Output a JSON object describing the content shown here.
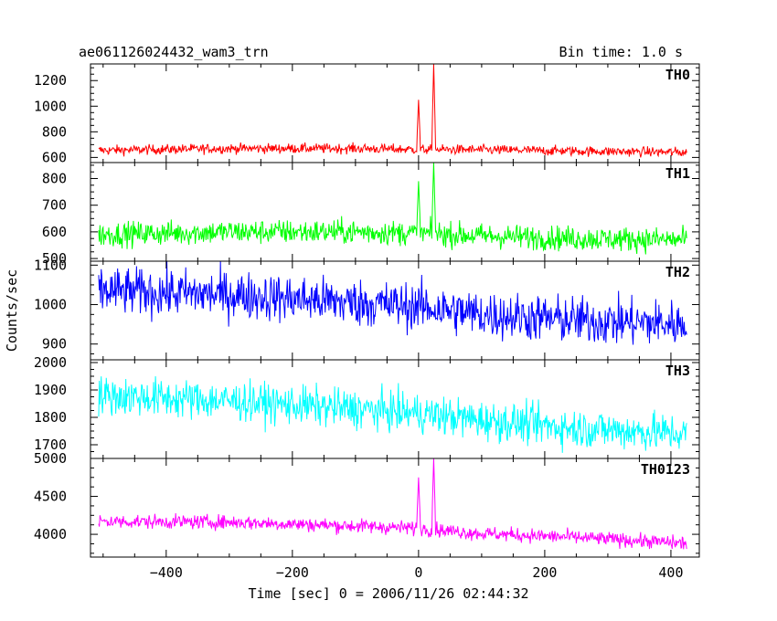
{
  "chart_data": {
    "type": "line",
    "title": "ae061126024432_wam3_trn",
    "bin_time_label": "Bin time: 1.0 s",
    "xlabel": "Time [sec] 0 = 2006/11/26 02:44:32",
    "ylabel": "Counts/sec",
    "xlim": [
      -520,
      445
    ],
    "x_ticks": [
      -400,
      -200,
      0,
      200,
      400
    ],
    "x_tick_labels": [
      "−400",
      "−200",
      "0",
      "200",
      "400"
    ],
    "x_range_data": [
      -507,
      425
    ],
    "bin_size_sec": 1.0,
    "panels": [
      {
        "name": "TH0",
        "color": "#ff0000",
        "ylim": [
          560,
          1330
        ],
        "y_ticks": [
          600,
          800,
          1000,
          1200
        ],
        "baseline": [
          {
            "x": -507,
            "y": 655
          },
          {
            "x": -300,
            "y": 670
          },
          {
            "x": -100,
            "y": 670
          },
          {
            "x": 0,
            "y": 662
          },
          {
            "x": 100,
            "y": 660
          },
          {
            "x": 250,
            "y": 650
          },
          {
            "x": 425,
            "y": 640
          }
        ],
        "noise_amplitude": 35,
        "spikes": [
          {
            "x": 0,
            "y": 1050
          },
          {
            "x": 24,
            "y": 1330
          }
        ]
      },
      {
        "name": "TH1",
        "color": "#00ff00",
        "ylim": [
          490,
          860
        ],
        "y_ticks": [
          500,
          600,
          700,
          800
        ],
        "baseline": [
          {
            "x": -507,
            "y": 590
          },
          {
            "x": -300,
            "y": 600
          },
          {
            "x": -100,
            "y": 600
          },
          {
            "x": 0,
            "y": 595
          },
          {
            "x": 100,
            "y": 585
          },
          {
            "x": 250,
            "y": 575
          },
          {
            "x": 425,
            "y": 570
          }
        ],
        "noise_amplitude": 42,
        "spikes": [
          {
            "x": 0,
            "y": 790
          },
          {
            "x": 24,
            "y": 860
          }
        ]
      },
      {
        "name": "TH2",
        "color": "#0000ff",
        "ylim": [
          860,
          1110
        ],
        "y_ticks": [
          900,
          1000,
          1100
        ],
        "baseline": [
          {
            "x": -507,
            "y": 1035
          },
          {
            "x": -300,
            "y": 1025
          },
          {
            "x": -100,
            "y": 1005
          },
          {
            "x": 0,
            "y": 995
          },
          {
            "x": 100,
            "y": 975
          },
          {
            "x": 250,
            "y": 960
          },
          {
            "x": 425,
            "y": 950
          }
        ],
        "noise_amplitude": 55,
        "spikes": []
      },
      {
        "name": "TH3",
        "color": "#00ffff",
        "ylim": [
          1650,
          2010
        ],
        "y_ticks": [
          1700,
          1800,
          1900,
          2000
        ],
        "baseline": [
          {
            "x": -507,
            "y": 1880
          },
          {
            "x": -300,
            "y": 1860
          },
          {
            "x": -100,
            "y": 1830
          },
          {
            "x": 0,
            "y": 1815
          },
          {
            "x": 100,
            "y": 1790
          },
          {
            "x": 250,
            "y": 1760
          },
          {
            "x": 425,
            "y": 1740
          }
        ],
        "noise_amplitude": 65,
        "spikes": []
      },
      {
        "name": "TH0123",
        "color": "#ff00ff",
        "ylim": [
          3700,
          5000
        ],
        "y_ticks": [
          4000,
          4500,
          5000
        ],
        "baseline": [
          {
            "x": -507,
            "y": 4170
          },
          {
            "x": -300,
            "y": 4160
          },
          {
            "x": -100,
            "y": 4110
          },
          {
            "x": 0,
            "y": 4080
          },
          {
            "x": 100,
            "y": 4010
          },
          {
            "x": 250,
            "y": 3960
          },
          {
            "x": 425,
            "y": 3880
          }
        ],
        "noise_amplitude": 85,
        "spikes": [
          {
            "x": 0,
            "y": 4750
          },
          {
            "x": 24,
            "y": 5000
          }
        ]
      }
    ],
    "grid": false,
    "legend": "none"
  }
}
